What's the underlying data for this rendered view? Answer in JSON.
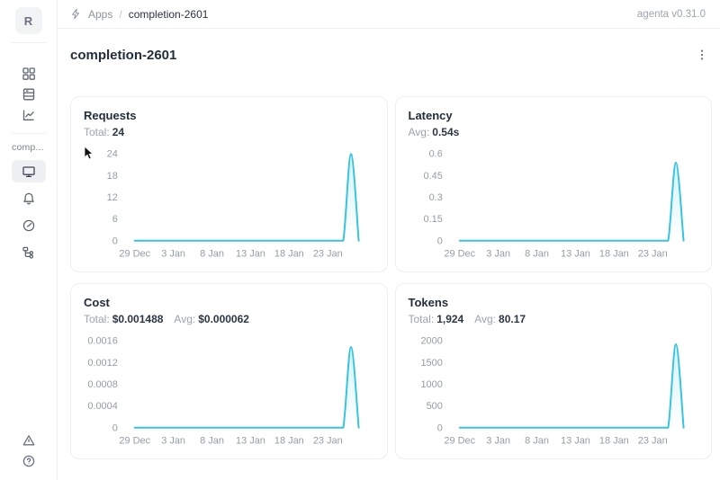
{
  "app": {
    "version_label": "agenta v0.31.0"
  },
  "breadcrumb": {
    "section": "Apps",
    "separator": "/",
    "current": "completion-2601"
  },
  "avatar": {
    "initial": "R"
  },
  "sidebar": {
    "workspace_label": "comp...",
    "nav_icons": [
      "grid-icon",
      "table-icon",
      "line-chart-icon"
    ],
    "app_icons": [
      "monitor-icon (selected)",
      "bell-icon",
      "history-dial-icon",
      "tree-trace-icon"
    ],
    "footer_icons": [
      "alert-triangle-icon",
      "help-circle-icon"
    ]
  },
  "page": {
    "title": "completion-2601"
  },
  "colors": {
    "accent_line": "#38c3de",
    "accent_fill": "#bfe9f5",
    "tick_text": "#939da8",
    "card_border": "#edeff2"
  },
  "chart_data": [
    {
      "type": "area",
      "title": "Requests",
      "stats": [
        {
          "label": "Total:",
          "value": "24"
        }
      ],
      "yticks": [
        0,
        6,
        12,
        18,
        24
      ],
      "ylim": [
        0,
        24
      ],
      "xticks": [
        {
          "index": 0,
          "label": "29 Dec"
        },
        {
          "index": 5,
          "label": "3 Jan"
        },
        {
          "index": 10,
          "label": "8 Jan"
        },
        {
          "index": 15,
          "label": "13 Jan"
        },
        {
          "index": 20,
          "label": "18 Jan"
        },
        {
          "index": 25,
          "label": "23 Jan"
        }
      ],
      "values": [
        0,
        0,
        0,
        0,
        0,
        0,
        0,
        0,
        0,
        0,
        0,
        0,
        0,
        0,
        0,
        0,
        0,
        0,
        0,
        0,
        0,
        0,
        0,
        0,
        0,
        0,
        0,
        0,
        24,
        0
      ],
      "grid": false,
      "legend": false
    },
    {
      "type": "area",
      "title": "Latency",
      "stats": [
        {
          "label": "Avg:",
          "value": "0.54s"
        }
      ],
      "yticks": [
        0,
        0.15,
        0.3,
        0.45,
        0.6
      ],
      "ylim": [
        0,
        0.6
      ],
      "xticks": [
        {
          "index": 0,
          "label": "29 Dec"
        },
        {
          "index": 5,
          "label": "3 Jan"
        },
        {
          "index": 10,
          "label": "8 Jan"
        },
        {
          "index": 15,
          "label": "13 Jan"
        },
        {
          "index": 20,
          "label": "18 Jan"
        },
        {
          "index": 25,
          "label": "23 Jan"
        }
      ],
      "values": [
        0,
        0,
        0,
        0,
        0,
        0,
        0,
        0,
        0,
        0,
        0,
        0,
        0,
        0,
        0,
        0,
        0,
        0,
        0,
        0,
        0,
        0,
        0,
        0,
        0,
        0,
        0,
        0,
        0.54,
        0
      ],
      "grid": false,
      "legend": false
    },
    {
      "type": "area",
      "title": "Cost",
      "stats": [
        {
          "label": "Total:",
          "value": "$0.001488"
        },
        {
          "label": "Avg:",
          "value": "$0.000062"
        }
      ],
      "yticks": [
        0,
        0.0004,
        0.0008,
        0.0012,
        0.0016
      ],
      "ylim": [
        0,
        0.0016
      ],
      "xticks": [
        {
          "index": 0,
          "label": "29 Dec"
        },
        {
          "index": 5,
          "label": "3 Jan"
        },
        {
          "index": 10,
          "label": "8 Jan"
        },
        {
          "index": 15,
          "label": "13 Jan"
        },
        {
          "index": 20,
          "label": "18 Jan"
        },
        {
          "index": 25,
          "label": "23 Jan"
        }
      ],
      "values": [
        0,
        0,
        0,
        0,
        0,
        0,
        0,
        0,
        0,
        0,
        0,
        0,
        0,
        0,
        0,
        0,
        0,
        0,
        0,
        0,
        0,
        0,
        0,
        0,
        0,
        0,
        0,
        0,
        0.001488,
        0
      ],
      "grid": false,
      "legend": false
    },
    {
      "type": "area",
      "title": "Tokens",
      "stats": [
        {
          "label": "Total:",
          "value": "1,924"
        },
        {
          "label": "Avg:",
          "value": "80.17"
        }
      ],
      "yticks": [
        0,
        500,
        1000,
        1500,
        2000
      ],
      "ylim": [
        0,
        2000
      ],
      "xticks": [
        {
          "index": 0,
          "label": "29 Dec"
        },
        {
          "index": 5,
          "label": "3 Jan"
        },
        {
          "index": 10,
          "label": "8 Jan"
        },
        {
          "index": 15,
          "label": "13 Jan"
        },
        {
          "index": 20,
          "label": "18 Jan"
        },
        {
          "index": 25,
          "label": "23 Jan"
        }
      ],
      "values": [
        0,
        0,
        0,
        0,
        0,
        0,
        0,
        0,
        0,
        0,
        0,
        0,
        0,
        0,
        0,
        0,
        0,
        0,
        0,
        0,
        0,
        0,
        0,
        0,
        0,
        0,
        0,
        0,
        1924,
        0
      ],
      "grid": false,
      "legend": false
    }
  ]
}
